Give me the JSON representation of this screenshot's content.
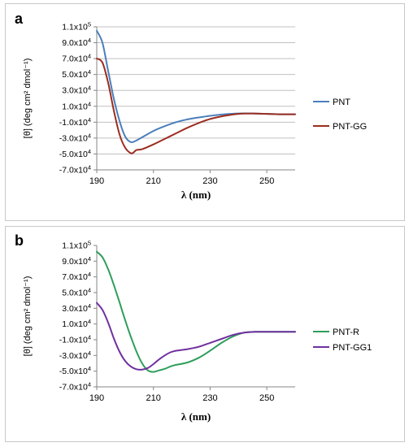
{
  "chart_data": [
    {
      "type": "line",
      "panel_label": "a",
      "xlabel": "λ (nm)",
      "ylabel": "[θ] (deg cm² dmol⁻¹)",
      "xlim": [
        190,
        260
      ],
      "ylim": [
        -70000,
        110000
      ],
      "x_ticks": [
        "190",
        "210",
        "230",
        "250"
      ],
      "y_ticks": [
        "1.1x10^5",
        "9.0x10^4",
        "7.0x10^4",
        "5.0x10^4",
        "3.0x10^4",
        "1.0x10^4",
        "-1.0x10^4",
        "-3.0x10^4",
        "-5.0x10^4",
        "-7.0x10^4"
      ],
      "grid": true,
      "legend_position": "right",
      "series": [
        {
          "name": "PNT",
          "color": "#4a7ebb",
          "x": [
            190,
            192,
            194,
            196,
            198,
            200,
            202,
            204,
            206,
            210,
            214,
            218,
            222,
            226,
            230,
            235,
            240,
            245,
            250,
            255,
            260
          ],
          "y": [
            105000,
            90000,
            55000,
            20000,
            -8000,
            -28000,
            -35000,
            -33000,
            -29000,
            -21000,
            -15000,
            -10000,
            -6500,
            -4000,
            -2000,
            0,
            1000,
            1000,
            500,
            0,
            0
          ]
        },
        {
          "name": "PNT-GG",
          "color": "#9b2d1f",
          "x": [
            190,
            192,
            194,
            196,
            198,
            200,
            202,
            203,
            204,
            206,
            210,
            214,
            218,
            222,
            226,
            230,
            235,
            240,
            245,
            250,
            255,
            260
          ],
          "y": [
            70000,
            65000,
            40000,
            5000,
            -25000,
            -42000,
            -49000,
            -48000,
            -45000,
            -44000,
            -38000,
            -31000,
            -24000,
            -17000,
            -11000,
            -6000,
            -2000,
            500,
            1000,
            500,
            0,
            0
          ]
        }
      ]
    },
    {
      "type": "line",
      "panel_label": "b",
      "xlabel": "λ (nm)",
      "ylabel": "[θ] (deg cm² dmol⁻¹)",
      "xlim": [
        190,
        260
      ],
      "ylim": [
        -70000,
        110000
      ],
      "x_ticks": [
        "190",
        "210",
        "230",
        "250"
      ],
      "y_ticks": [
        "1.1x10^5",
        "9.0x10^4",
        "7.0x10^4",
        "5.0x10^4",
        "3.0x10^4",
        "1.0x10^4",
        "-1.0x10^4",
        "-3.0x10^4",
        "-5.0x10^4",
        "-7.0x10^4"
      ],
      "grid": false,
      "legend_position": "right",
      "series": [
        {
          "name": "PNT-R",
          "color": "#2e9e5b",
          "x": [
            190,
            192,
            194,
            196,
            198,
            200,
            202,
            204,
            206,
            208,
            210,
            212,
            214,
            216,
            218,
            222,
            226,
            230,
            234,
            238,
            242,
            246,
            250,
            255,
            260
          ],
          "y": [
            102000,
            95000,
            80000,
            60000,
            38000,
            15000,
            -6000,
            -25000,
            -40000,
            -49000,
            -51000,
            -49000,
            -47000,
            -44000,
            -42000,
            -39000,
            -33000,
            -24000,
            -14000,
            -6000,
            -1000,
            0,
            0,
            0,
            0
          ]
        },
        {
          "name": "PNT-GG1",
          "color": "#7030a0",
          "x": [
            190,
            192,
            194,
            196,
            198,
            200,
            202,
            204,
            206,
            208,
            210,
            212,
            214,
            216,
            218,
            222,
            226,
            230,
            234,
            238,
            242,
            246,
            250,
            255,
            260
          ],
          "y": [
            37000,
            28000,
            12000,
            -8000,
            -25000,
            -37000,
            -44000,
            -47500,
            -48000,
            -46000,
            -41000,
            -35000,
            -30000,
            -26000,
            -24000,
            -22000,
            -19000,
            -14000,
            -9000,
            -4000,
            -1000,
            0,
            0,
            0,
            0
          ]
        }
      ]
    }
  ]
}
